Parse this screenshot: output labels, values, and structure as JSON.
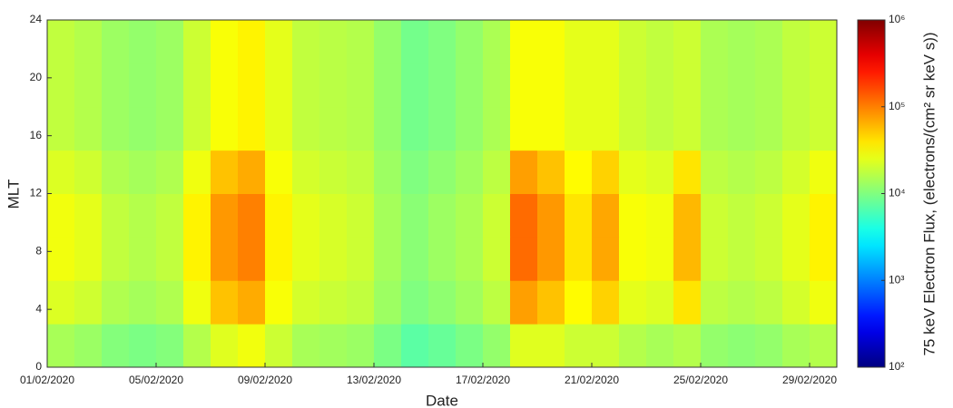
{
  "chart_data": {
    "type": "heatmap",
    "xlabel": "Date",
    "ylabel": "MLT",
    "zlabel": "75 keV Electron Flux, (electrons/(cm² sr keV s))",
    "colormap": "jet",
    "zscale": "log",
    "zlim": [
      100,
      1000000
    ],
    "zticks": [
      {
        "value": 100,
        "label": "10²"
      },
      {
        "value": 1000,
        "label": "10³"
      },
      {
        "value": 10000,
        "label": "10⁴"
      },
      {
        "value": 100000,
        "label": "10⁵"
      },
      {
        "value": 1000000,
        "label": "10⁶"
      }
    ],
    "x": [
      "01/02/2020",
      "02/02/2020",
      "03/02/2020",
      "04/02/2020",
      "05/02/2020",
      "06/02/2020",
      "07/02/2020",
      "08/02/2020",
      "09/02/2020",
      "10/02/2020",
      "11/02/2020",
      "12/02/2020",
      "13/02/2020",
      "14/02/2020",
      "15/02/2020",
      "16/02/2020",
      "17/02/2020",
      "18/02/2020",
      "19/02/2020",
      "20/02/2020",
      "21/02/2020",
      "22/02/2020",
      "23/02/2020",
      "24/02/2020",
      "25/02/2020",
      "26/02/2020",
      "27/02/2020",
      "28/02/2020",
      "29/02/2020"
    ],
    "xticks": [
      "01/02/2020",
      "05/02/2020",
      "09/02/2020",
      "13/02/2020",
      "17/02/2020",
      "21/02/2020",
      "25/02/2020",
      "29/02/2020"
    ],
    "ybins": [
      0,
      3,
      6,
      9,
      12,
      15,
      18,
      21,
      24
    ],
    "ylim": [
      0,
      24
    ],
    "yticks": [
      0,
      4,
      8,
      12,
      16,
      20,
      24
    ],
    "z": [
      [
        14400,
        12800,
        10400,
        9600,
        10400,
        16000,
        24000,
        28000,
        20000,
        14400,
        13600,
        12800,
        9600,
        7200,
        8000,
        9600,
        12000,
        24000,
        24000,
        20000,
        20000,
        16000,
        14400,
        16000,
        12000,
        11200,
        12000,
        14400,
        16000
      ],
      [
        23000,
        20500,
        15500,
        14000,
        15500,
        27500,
        55000,
        67500,
        30000,
        21500,
        19500,
        18000,
        13000,
        10000,
        11500,
        13500,
        17500,
        75000,
        55000,
        32500,
        47500,
        25000,
        23000,
        40000,
        17500,
        16000,
        17500,
        21500,
        27500
      ],
      [
        28000,
        25000,
        18000,
        16000,
        18000,
        35000,
        80000,
        100000,
        35000,
        25000,
        22000,
        20000,
        14000,
        11000,
        13000,
        15000,
        20000,
        120000,
        80000,
        40000,
        70000,
        30000,
        28000,
        60000,
        20000,
        18000,
        20000,
        25000,
        35000
      ],
      [
        28000,
        25000,
        18000,
        16000,
        18000,
        35000,
        80000,
        100000,
        35000,
        25000,
        22000,
        20000,
        14000,
        11000,
        13000,
        15000,
        20000,
        120000,
        80000,
        40000,
        70000,
        30000,
        28000,
        60000,
        20000,
        18000,
        20000,
        25000,
        35000
      ],
      [
        23000,
        20500,
        15500,
        14000,
        15500,
        27500,
        55000,
        67500,
        30000,
        21500,
        19500,
        18000,
        13000,
        10000,
        11500,
        13500,
        17500,
        75000,
        55000,
        32500,
        47500,
        25000,
        23000,
        40000,
        17500,
        16000,
        17500,
        21500,
        27500
      ],
      [
        18000,
        16000,
        13000,
        12000,
        13000,
        20000,
        30000,
        35000,
        25000,
        18000,
        17000,
        16000,
        12000,
        9000,
        10000,
        12000,
        15000,
        30000,
        30000,
        25000,
        25000,
        20000,
        18000,
        20000,
        15000,
        14000,
        15000,
        18000,
        20000
      ],
      [
        18000,
        16000,
        13000,
        12000,
        13000,
        20000,
        30000,
        35000,
        25000,
        18000,
        17000,
        16000,
        12000,
        9000,
        10000,
        12000,
        15000,
        30000,
        30000,
        25000,
        25000,
        20000,
        18000,
        20000,
        15000,
        14000,
        15000,
        18000,
        20000
      ],
      [
        18000,
        16000,
        13000,
        12000,
        13000,
        20000,
        30000,
        35000,
        25000,
        18000,
        17000,
        16000,
        12000,
        9000,
        10000,
        12000,
        15000,
        30000,
        30000,
        25000,
        25000,
        20000,
        18000,
        20000,
        15000,
        14000,
        15000,
        18000,
        20000
      ]
    ]
  }
}
